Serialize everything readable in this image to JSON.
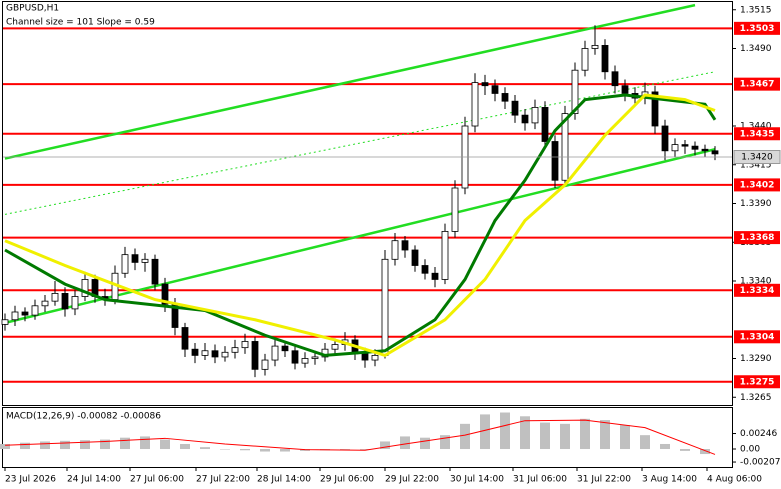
{
  "chart_data": {
    "type": "candlestick",
    "title": "GBPUSD,H1",
    "subtitle": "Channel size = 101 Slope = 0.59",
    "up_color": "#ffffff",
    "down_color": "#000000",
    "candles": [
      [
        1.3312,
        1.3319,
        1.3308,
        1.3315
      ],
      [
        1.3315,
        1.3324,
        1.3311,
        1.332
      ],
      [
        1.332,
        1.3323,
        1.3314,
        1.3318
      ],
      [
        1.3318,
        1.3328,
        1.3315,
        1.3324
      ],
      [
        1.3324,
        1.3331,
        1.332,
        1.3327
      ],
      [
        1.3327,
        1.334,
        1.3324,
        1.3332
      ],
      [
        1.3332,
        1.3336,
        1.3317,
        1.3322
      ],
      [
        1.3322,
        1.3334,
        1.3318,
        1.333
      ],
      [
        1.333,
        1.3346,
        1.3327,
        1.3341
      ],
      [
        1.3341,
        1.3344,
        1.3326,
        1.333
      ],
      [
        1.333,
        1.3335,
        1.3324,
        1.3328
      ],
      [
        1.3328,
        1.335,
        1.3325,
        1.3345
      ],
      [
        1.3345,
        1.3362,
        1.3342,
        1.3357
      ],
      [
        1.3357,
        1.3361,
        1.3347,
        1.3352
      ],
      [
        1.3352,
        1.3358,
        1.3346,
        1.3354
      ],
      [
        1.3354,
        1.3357,
        1.3334,
        1.3338
      ],
      [
        1.3338,
        1.3342,
        1.332,
        1.3325
      ],
      [
        1.3325,
        1.3329,
        1.3305,
        1.331
      ],
      [
        1.331,
        1.3313,
        1.3291,
        1.3296
      ],
      [
        1.3296,
        1.33,
        1.3287,
        1.3292
      ],
      [
        1.3292,
        1.33,
        1.3289,
        1.3295
      ],
      [
        1.3295,
        1.3299,
        1.3287,
        1.3291
      ],
      [
        1.3291,
        1.3298,
        1.3288,
        1.3294
      ],
      [
        1.3294,
        1.3302,
        1.329,
        1.3297
      ],
      [
        1.3297,
        1.3306,
        1.3293,
        1.3301
      ],
      [
        1.3301,
        1.3304,
        1.3278,
        1.3283
      ],
      [
        1.3283,
        1.3293,
        1.3279,
        1.3289
      ],
      [
        1.3289,
        1.3302,
        1.3285,
        1.3298
      ],
      [
        1.3298,
        1.3301,
        1.3291,
        1.3295
      ],
      [
        1.3295,
        1.3298,
        1.3283,
        1.3287
      ],
      [
        1.3287,
        1.3294,
        1.3284,
        1.329
      ],
      [
        1.329,
        1.3295,
        1.3286,
        1.3291
      ],
      [
        1.3291,
        1.33,
        1.3288,
        1.3296
      ],
      [
        1.3296,
        1.3303,
        1.3292,
        1.3299
      ],
      [
        1.3299,
        1.3307,
        1.3295,
        1.3302
      ],
      [
        1.3302,
        1.3305,
        1.3289,
        1.3293
      ],
      [
        1.3293,
        1.3297,
        1.3284,
        1.3289
      ],
      [
        1.3289,
        1.3296,
        1.3285,
        1.3292
      ],
      [
        1.3292,
        1.336,
        1.329,
        1.3354
      ],
      [
        1.3354,
        1.3371,
        1.335,
        1.3366
      ],
      [
        1.3366,
        1.3369,
        1.3355,
        1.336
      ],
      [
        1.336,
        1.3363,
        1.3346,
        1.335
      ],
      [
        1.335,
        1.3354,
        1.3341,
        1.3345
      ],
      [
        1.3345,
        1.3349,
        1.3336,
        1.3341
      ],
      [
        1.3341,
        1.3377,
        1.3338,
        1.3372
      ],
      [
        1.3372,
        1.3405,
        1.3368,
        1.34
      ],
      [
        1.34,
        1.3446,
        1.3396,
        1.344
      ],
      [
        1.344,
        1.3474,
        1.3436,
        1.3468
      ],
      [
        1.3468,
        1.3473,
        1.346,
        1.3466
      ],
      [
        1.3466,
        1.347,
        1.3456,
        1.3461
      ],
      [
        1.3461,
        1.3465,
        1.3451,
        1.3456
      ],
      [
        1.3456,
        1.346,
        1.3442,
        1.3447
      ],
      [
        1.3447,
        1.3451,
        1.3437,
        1.3442
      ],
      [
        1.3442,
        1.3457,
        1.3438,
        1.3452
      ],
      [
        1.3452,
        1.3456,
        1.3425,
        1.343
      ],
      [
        1.343,
        1.3434,
        1.34,
        1.3405
      ],
      [
        1.3405,
        1.3453,
        1.3401,
        1.3448
      ],
      [
        1.3448,
        1.3481,
        1.3444,
        1.3476
      ],
      [
        1.3476,
        1.3495,
        1.3472,
        1.349
      ],
      [
        1.349,
        1.3505,
        1.3486,
        1.3492
      ],
      [
        1.3492,
        1.3496,
        1.347,
        1.3475
      ],
      [
        1.3475,
        1.3479,
        1.3461,
        1.3466
      ],
      [
        1.3466,
        1.347,
        1.3456,
        1.3461
      ],
      [
        1.3461,
        1.3465,
        1.3453,
        1.3458
      ],
      [
        1.3458,
        1.3468,
        1.3454,
        1.3462
      ],
      [
        1.3462,
        1.3466,
        1.3435,
        1.344
      ],
      [
        1.344,
        1.3444,
        1.3418,
        1.3424
      ],
      [
        1.3424,
        1.3432,
        1.342,
        1.3428
      ],
      [
        1.3428,
        1.3431,
        1.3422,
        1.3427
      ],
      [
        1.3427,
        1.343,
        1.3421,
        1.3425
      ],
      [
        1.3425,
        1.3428,
        1.342,
        1.3424
      ],
      [
        1.3424,
        1.3427,
        1.3418,
        1.3422
      ]
    ],
    "moving_averages": [
      {
        "color": "#007a00",
        "x": [
          0,
          6,
          10,
          20,
          26,
          32,
          38,
          43,
          46,
          49,
          52,
          55,
          58,
          62,
          66,
          70,
          71
        ],
        "values": [
          1.336,
          1.3338,
          1.3328,
          1.3321,
          1.3305,
          1.3292,
          1.3295,
          1.3315,
          1.3341,
          1.3379,
          1.3405,
          1.3437,
          1.3457,
          1.346,
          1.3457,
          1.3454,
          1.3444
        ]
      },
      {
        "color": "#f0f000",
        "x": [
          0,
          6,
          15,
          25,
          33,
          38,
          44,
          48,
          52,
          56,
          60,
          64,
          68,
          71
        ],
        "values": [
          1.3366,
          1.335,
          1.3328,
          1.3315,
          1.3302,
          1.3292,
          1.3315,
          1.3341,
          1.3379,
          1.3402,
          1.3434,
          1.346,
          1.3457,
          1.345
        ]
      }
    ],
    "channel": [
      {
        "color": "#22dd22",
        "style": "solid",
        "x": [
          0,
          69
        ],
        "values": [
          1.3419,
          1.3518
        ]
      },
      {
        "color": "#22dd22",
        "style": "solid",
        "x": [
          0,
          71
        ],
        "values": [
          1.3313,
          1.3425
        ]
      },
      {
        "color": "#22dd22",
        "style": "dotted",
        "x": [
          0,
          71
        ],
        "values": [
          1.3383,
          1.3475
        ]
      }
    ],
    "levels": [
      1.3503,
      1.3467,
      1.3435,
      1.3402,
      1.3368,
      1.3334,
      1.3304,
      1.3275
    ],
    "level_color": "#ff0000",
    "current_price": {
      "value": 1.342,
      "label": "1.3420"
    },
    "xlim": [
      -0.2,
      72.7
    ],
    "xticks": [
      {
        "value": 0,
        "label": "23 Jul 2026"
      },
      {
        "value": 6.2,
        "label": "24 Jul 14:00"
      },
      {
        "value": 12.5,
        "label": "27 Jul 06:00"
      },
      {
        "value": 19.1,
        "label": "27 Jul 22:00"
      },
      {
        "value": 25.2,
        "label": "28 Jul 14:00"
      },
      {
        "value": 31.5,
        "label": "29 Jul 06:00"
      },
      {
        "value": 38,
        "label": "29 Jul 22:00"
      },
      {
        "value": 44.5,
        "label": "30 Jul 14:00"
      },
      {
        "value": 50.8,
        "label": "31 Jul 06:00"
      },
      {
        "value": 57.2,
        "label": "31 Jul 22:00"
      },
      {
        "value": 63.7,
        "label": "3 Aug 14:00"
      },
      {
        "value": 70.2,
        "label": "4 Aug 06:00"
      }
    ],
    "ylim": [
      1.326,
      1.352
    ],
    "yticks": [
      {
        "value": 1.3515,
        "label": "1.3515"
      },
      {
        "value": 1.349,
        "label": "1.3490"
      },
      {
        "value": 1.344,
        "label": "1.3440"
      },
      {
        "value": 1.3415,
        "label": "1.3415"
      },
      {
        "value": 1.339,
        "label": "1.3390"
      },
      {
        "value": 1.3365,
        "label": "1.3365"
      },
      {
        "value": 1.334,
        "label": "1.3340"
      },
      {
        "value": 1.329,
        "label": "1.3290"
      },
      {
        "value": 1.3265,
        "label": "1.3265"
      }
    ],
    "macd": {
      "title": "MACD(12,26,9) -0.00082 -0.00086",
      "histogram_color": "#c0c0c0",
      "signal_color": "#ff0000",
      "histogram": {
        "x": [
          0,
          2,
          4,
          6,
          8,
          10,
          12,
          14,
          16,
          18,
          20,
          22,
          24,
          26,
          28,
          30,
          32,
          34,
          36,
          38,
          40,
          42,
          44,
          46,
          48,
          50,
          52,
          54,
          56,
          58,
          60,
          62,
          64,
          66,
          68,
          70
        ],
        "values": [
          0.0008,
          0.001,
          0.0012,
          0.0013,
          0.0014,
          0.0015,
          0.0018,
          0.002,
          0.0015,
          0.0008,
          0.0003,
          0,
          -0.0002,
          -0.0004,
          -0.0004,
          -0.0003,
          -0.0002,
          0,
          -0.0001,
          0.0012,
          0.002,
          0.0018,
          0.0022,
          0.004,
          0.0055,
          0.0058,
          0.0052,
          0.0042,
          0.004,
          0.0048,
          0.0046,
          0.0038,
          0.0022,
          0.0008,
          -0.0003,
          -0.0008
        ]
      },
      "signal": {
        "x": [
          0,
          10,
          16,
          22,
          30,
          36,
          40,
          46,
          52,
          58,
          64,
          71
        ],
        "values": [
          0.0006,
          0.0012,
          0.0017,
          0.0008,
          -0.0001,
          -0.0002,
          0.0008,
          0.0022,
          0.0045,
          0.0046,
          0.0034,
          -0.00086
        ]
      },
      "ylim": [
        -0.0027,
        0.0062
      ],
      "yticks": [
        {
          "value": 0.00246,
          "label": "0.00246"
        },
        {
          "value": 0,
          "label": "0.00"
        },
        {
          "value": -0.00207,
          "label": "-0.00207"
        }
      ]
    }
  }
}
